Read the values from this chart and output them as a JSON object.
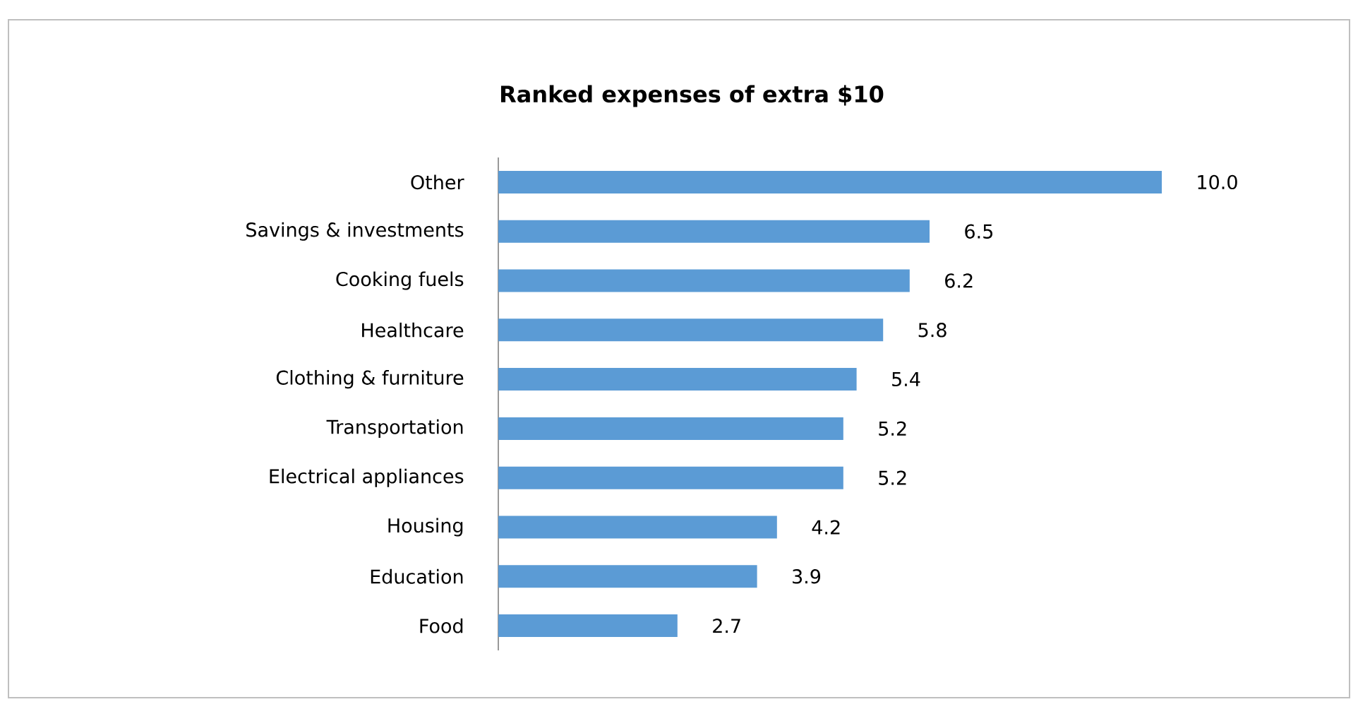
{
  "chart_data": {
    "type": "bar",
    "orientation": "horizontal",
    "title": "Ranked expenses of extra $10",
    "categories": [
      "Other",
      "Savings & investments",
      "Cooking fuels",
      "Healthcare",
      "Clothing & furniture",
      "Transportation",
      "Electrical appliances",
      "Housing",
      "Education",
      "Food"
    ],
    "values": [
      10.0,
      6.5,
      6.2,
      5.8,
      5.4,
      5.2,
      5.2,
      4.2,
      3.9,
      2.7
    ],
    "value_labels": [
      "10.0",
      "6.5",
      "6.2",
      "5.8",
      "5.4",
      "5.2",
      "5.2",
      "4.2",
      "3.9",
      "2.7"
    ],
    "color": "#5b9bd5"
  }
}
